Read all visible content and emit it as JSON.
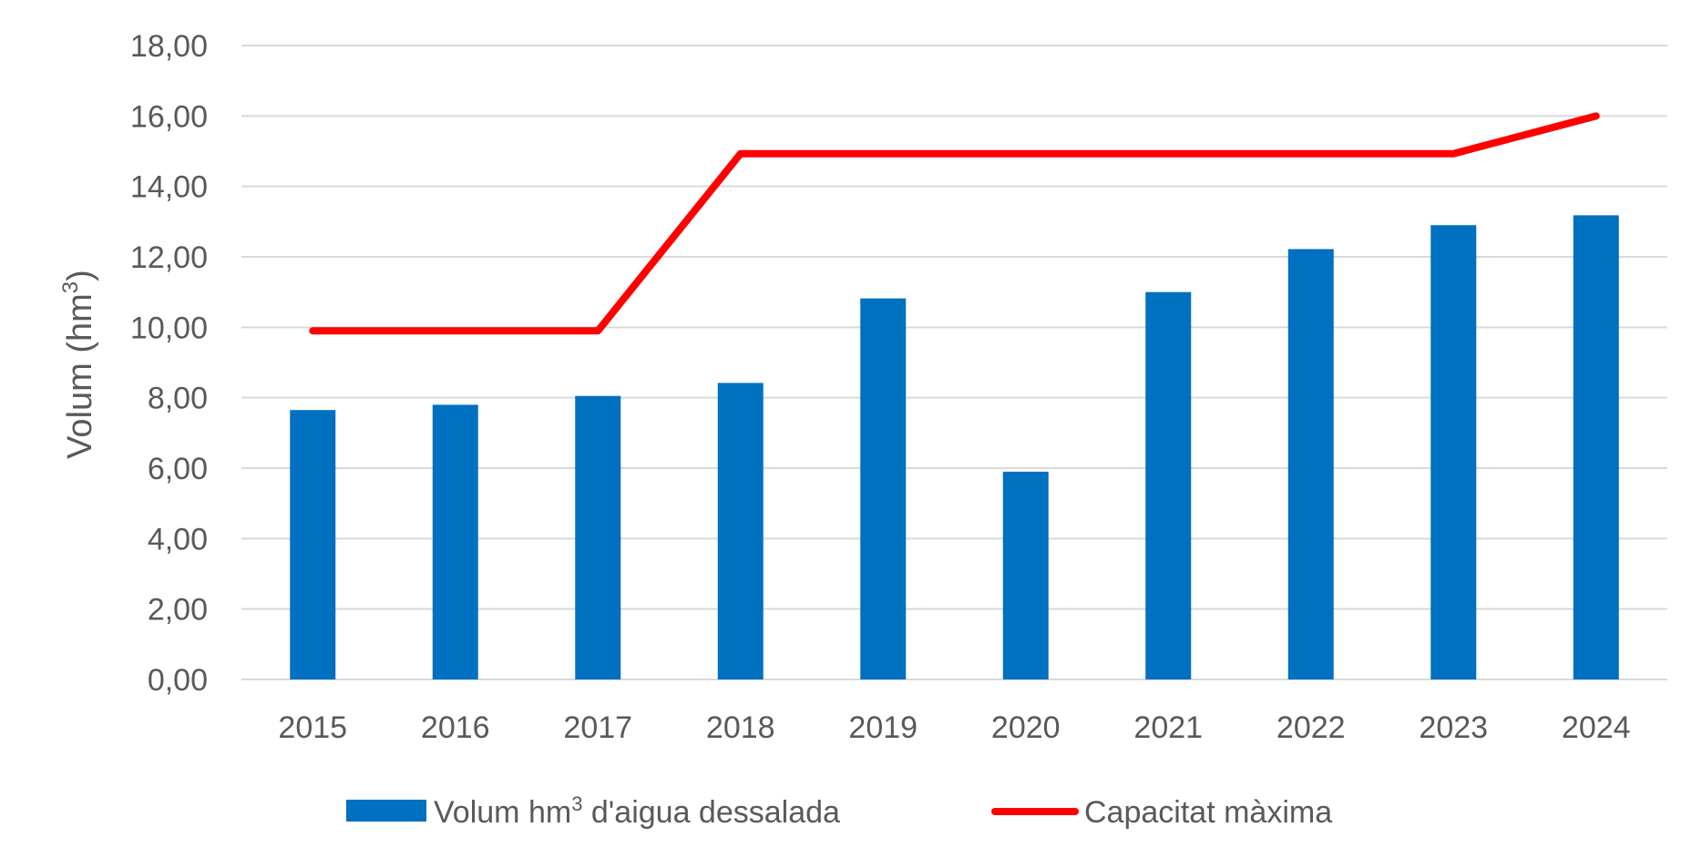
{
  "chart_data": {
    "type": "bar",
    "categories": [
      "2015",
      "2016",
      "2017",
      "2018",
      "2019",
      "2020",
      "2021",
      "2022",
      "2023",
      "2024"
    ],
    "series": [
      {
        "name": "Volum hm³ d'aigua dessalada",
        "type": "bar",
        "color": "#0070C0",
        "values": [
          7.65,
          7.8,
          8.05,
          8.42,
          10.82,
          5.9,
          11.0,
          12.22,
          12.9,
          13.18
        ]
      },
      {
        "name": "Capacitat màxima",
        "type": "line",
        "color": "#FF0000",
        "values": [
          9.9,
          9.9,
          9.9,
          14.93,
          14.93,
          14.93,
          14.93,
          14.93,
          14.93,
          16.0
        ]
      }
    ],
    "yticks": [
      "0,00",
      "2,00",
      "4,00",
      "6,00",
      "8,00",
      "10,00",
      "12,00",
      "14,00",
      "16,00",
      "18,00"
    ],
    "ylim": [
      0,
      18
    ],
    "ylabel": {
      "main": "Volum (hm",
      "sup": "3",
      "close": ")"
    },
    "xlabel": "",
    "title": "",
    "grid": true,
    "legend_position": "bottom",
    "legend": [
      {
        "label": "Volum hm",
        "sup": "3",
        "rest": " d'aigua dessalada"
      },
      {
        "label": "Capacitat màxima"
      }
    ],
    "colors": {
      "gridline": "#D9D9D9",
      "text": "#595959"
    }
  }
}
